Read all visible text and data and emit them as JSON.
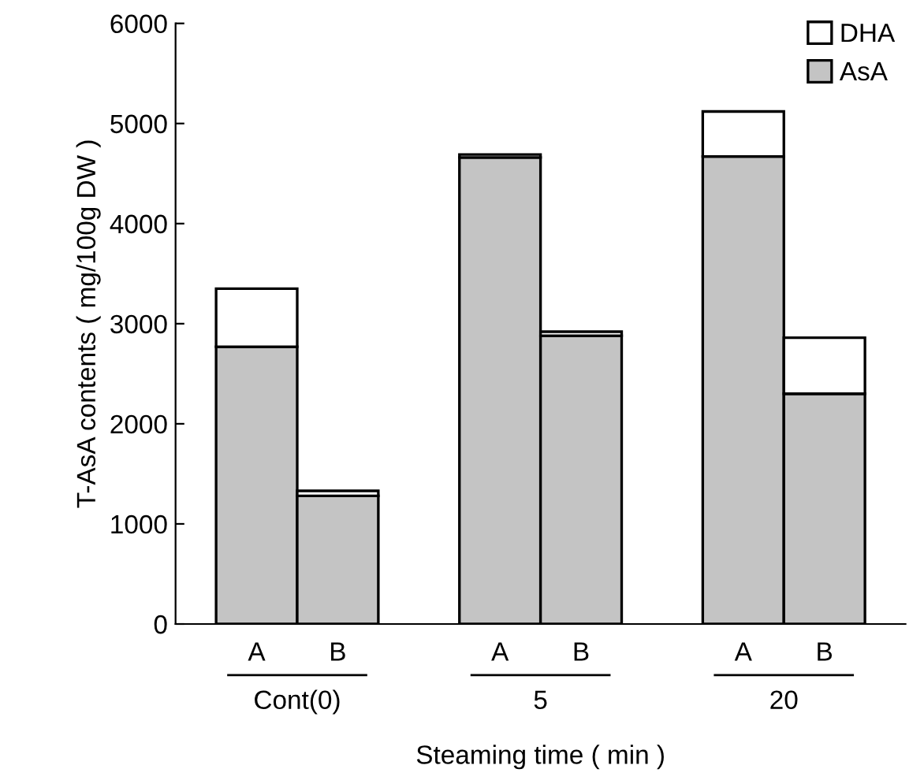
{
  "chart_data": {
    "type": "bar",
    "stacked": true,
    "xlabel": "Steaming time ( min )",
    "ylabel": "T-AsA contents ( mg/100g DW )",
    "categories": [
      "A",
      "B",
      null,
      "A",
      "B",
      null,
      "A",
      "B"
    ],
    "series": [
      {
        "name": "AsA",
        "color": "#c4c4c4",
        "values": [
          2770,
          1280,
          null,
          4660,
          2880,
          null,
          4670,
          2300
        ]
      },
      {
        "name": "DHA",
        "color": "#ffffff",
        "values": [
          580,
          50,
          null,
          30,
          40,
          null,
          450,
          560
        ]
      }
    ],
    "annotations": [
      "Cont(0)",
      "5",
      "20"
    ],
    "ylim": [
      0,
      6000
    ],
    "yticks": [
      0,
      1000,
      2000,
      3000,
      4000,
      5000,
      6000
    ],
    "grid": false,
    "legend": "top right"
  }
}
